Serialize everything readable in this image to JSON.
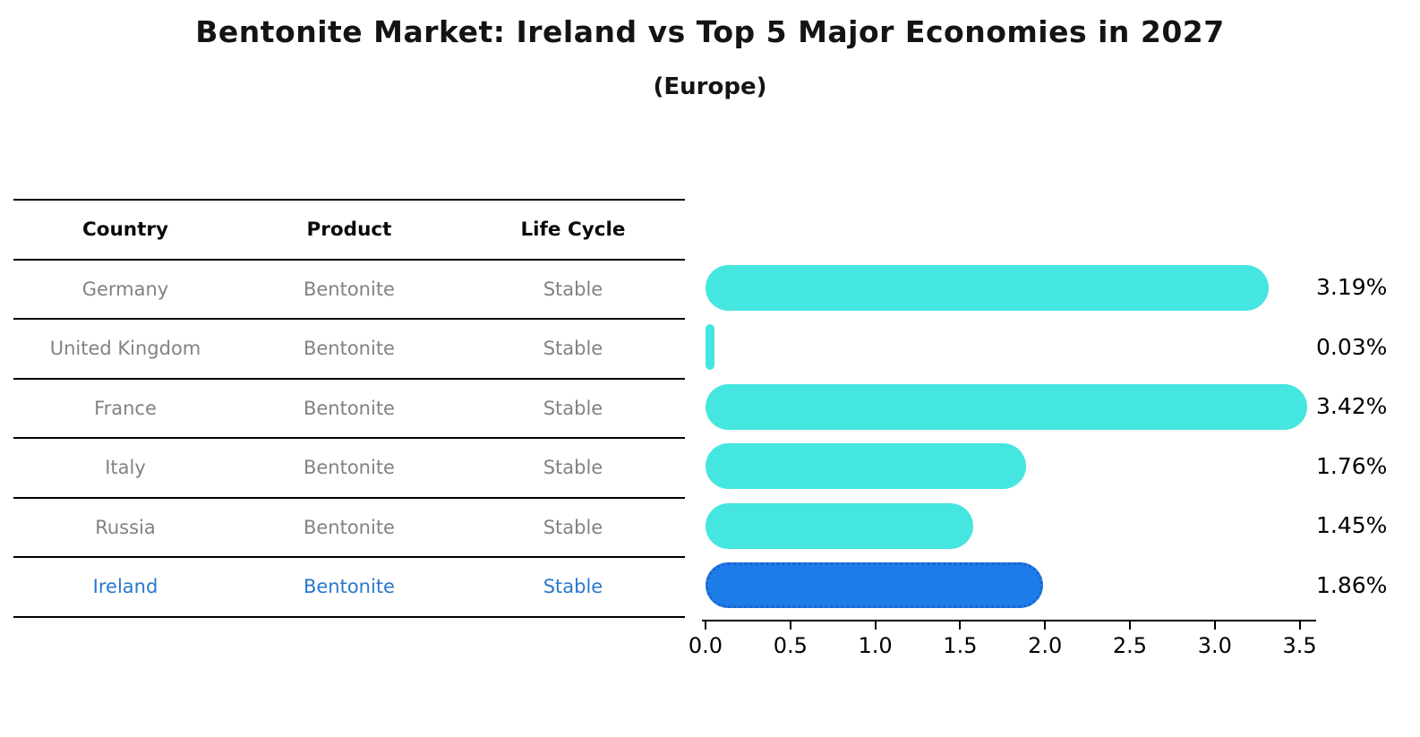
{
  "title": "Bentonite Market: Ireland vs Top 5 Major Economies in 2027",
  "subtitle": "(Europe)",
  "table": {
    "headers": [
      "Country",
      "Product",
      "Life Cycle"
    ],
    "rows": [
      {
        "country": "Germany",
        "product": "Bentonite",
        "life_cycle": "Stable",
        "highlight": false
      },
      {
        "country": "United Kingdom",
        "product": "Bentonite",
        "life_cycle": "Stable",
        "highlight": false
      },
      {
        "country": "France",
        "product": "Bentonite",
        "life_cycle": "Stable",
        "highlight": false
      },
      {
        "country": "Italy",
        "product": "Bentonite",
        "life_cycle": "Stable",
        "highlight": false
      },
      {
        "country": "Russia",
        "product": "Bentonite",
        "life_cycle": "Stable",
        "highlight": false
      },
      {
        "country": "Ireland",
        "product": "Bentonite",
        "life_cycle": "Stable",
        "highlight": true
      }
    ]
  },
  "chart_data": {
    "type": "bar",
    "orientation": "horizontal",
    "title": "Bentonite Market: Ireland vs Top 5 Major Economies in 2027",
    "subtitle": "(Europe)",
    "categories": [
      "Germany",
      "United Kingdom",
      "France",
      "Italy",
      "Russia",
      "Ireland"
    ],
    "values": [
      3.19,
      0.03,
      3.42,
      1.76,
      1.45,
      1.86
    ],
    "labels": [
      "3.19%",
      "0.03%",
      "3.42%",
      "1.76%",
      "1.45%",
      "1.86%"
    ],
    "unit": "%",
    "xticks": [
      "0.0",
      "0.5",
      "1.0",
      "1.5",
      "2.0",
      "2.5",
      "3.0",
      "3.5"
    ],
    "xlim": [
      0,
      3.5
    ],
    "grid": false,
    "legend": "none",
    "bar_color": "#45e6df",
    "highlight_color": "#1e7ce8",
    "highlight_index": 5,
    "highlight_category": "Ireland"
  },
  "colors": {
    "bar_cyan": "#45e6df",
    "bar_blue": "#1e7ce8",
    "highlight_text_blue": "#2878cc",
    "row_text_gray": "#828282",
    "line_black": "#000000"
  }
}
